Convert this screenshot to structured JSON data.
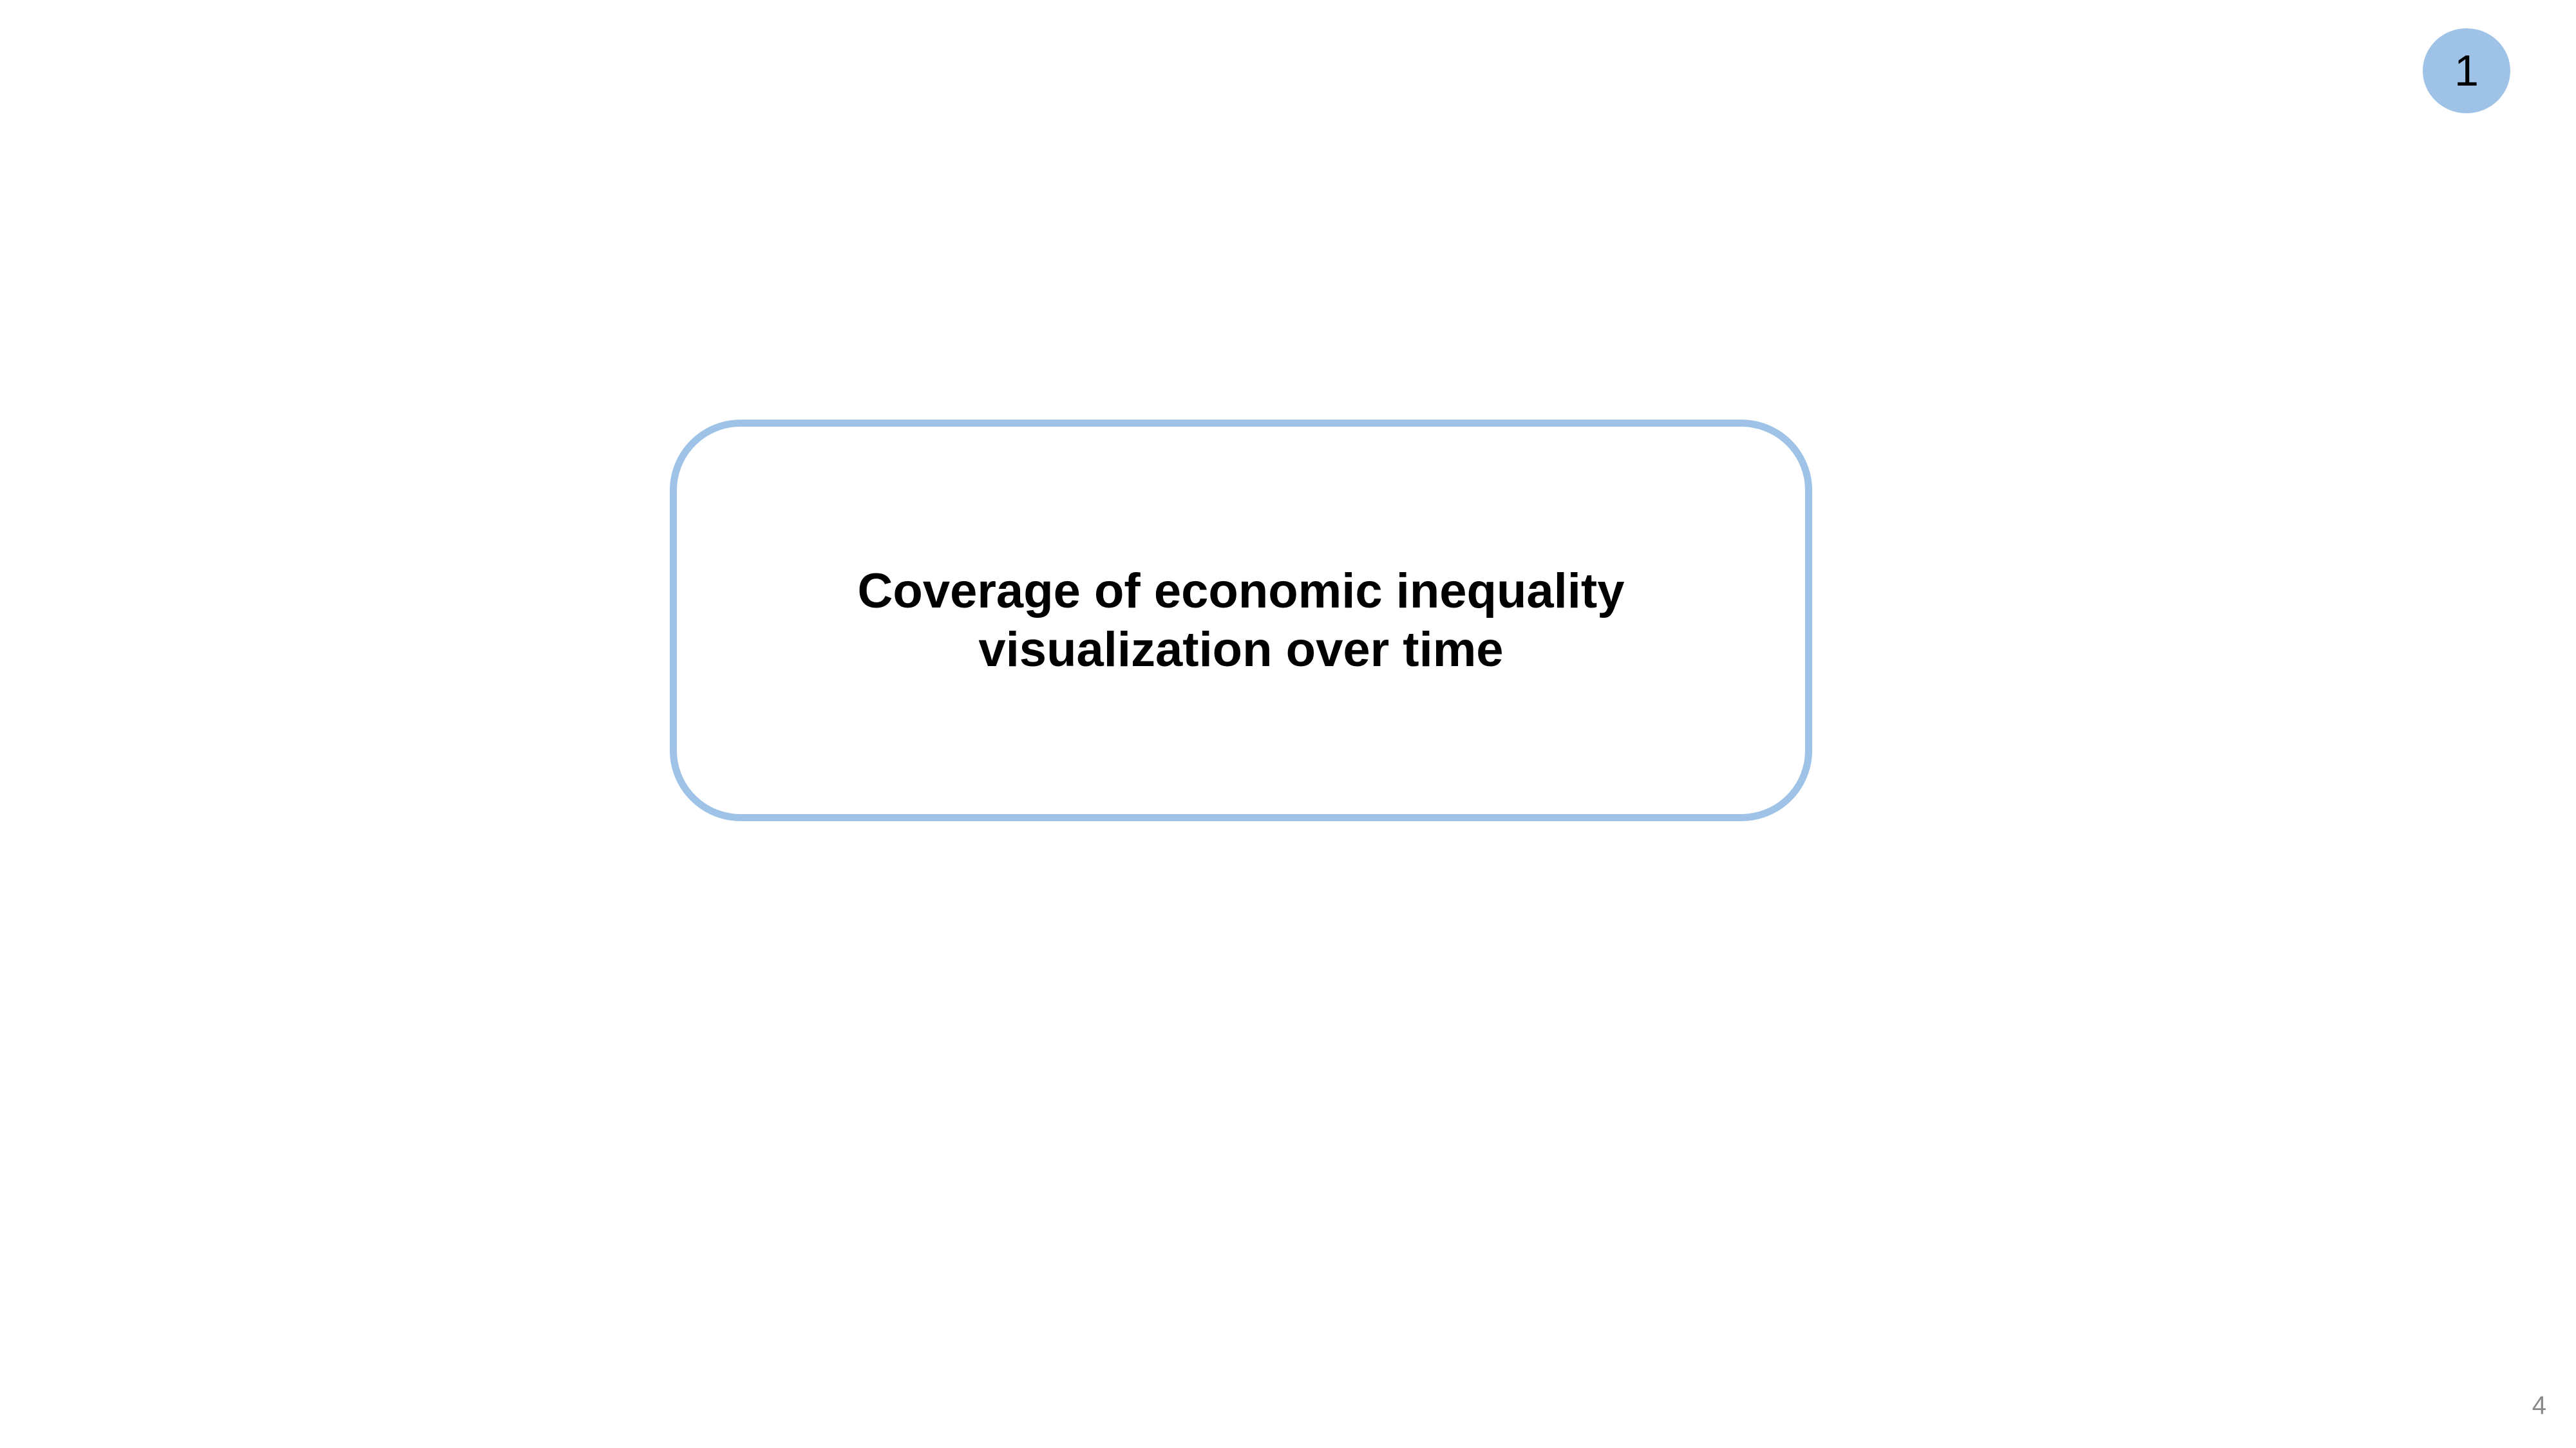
{
  "step_badge": {
    "number": "1",
    "color": "#9fc3e6"
  },
  "title_box": {
    "line1": "Coverage of economic inequality",
    "line2": "visualization over time",
    "border_color": "#9fc3e6"
  },
  "page_number": "4"
}
